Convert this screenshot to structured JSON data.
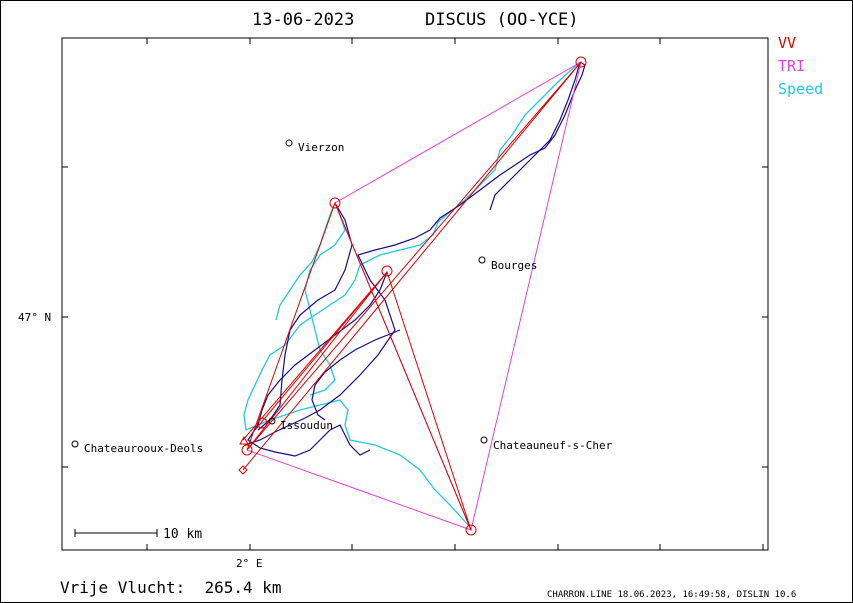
{
  "header": {
    "date": "13-06-2023",
    "glider": "DISCUS (OO-YCE)"
  },
  "legend": [
    {
      "label": "VV",
      "color": "#e00000"
    },
    {
      "label": "TRI",
      "color": "#e040e0"
    },
    {
      "label": "Speed",
      "color": "#20c8e0"
    }
  ],
  "axes": {
    "lat_label": "47° N",
    "lon_label": "2° E"
  },
  "places": [
    {
      "name": "Vierzon"
    },
    {
      "name": "Bourges"
    },
    {
      "name": "Issoudun"
    },
    {
      "name": "Chateaurooux-Deols"
    },
    {
      "name": "Chateauneuf-s-Cher"
    }
  ],
  "scale": {
    "label": "10 km"
  },
  "footer": {
    "distance": "Vrije Vlucht:  265.4 km",
    "credits": "CHARRON.LINE 18.06.2023, 16:49:58, DISLIN 10.6"
  },
  "colors": {
    "track": "#1a0a8c",
    "vv": "#e00000",
    "tri": "#e040e0",
    "speed": "#20c8e0"
  }
}
